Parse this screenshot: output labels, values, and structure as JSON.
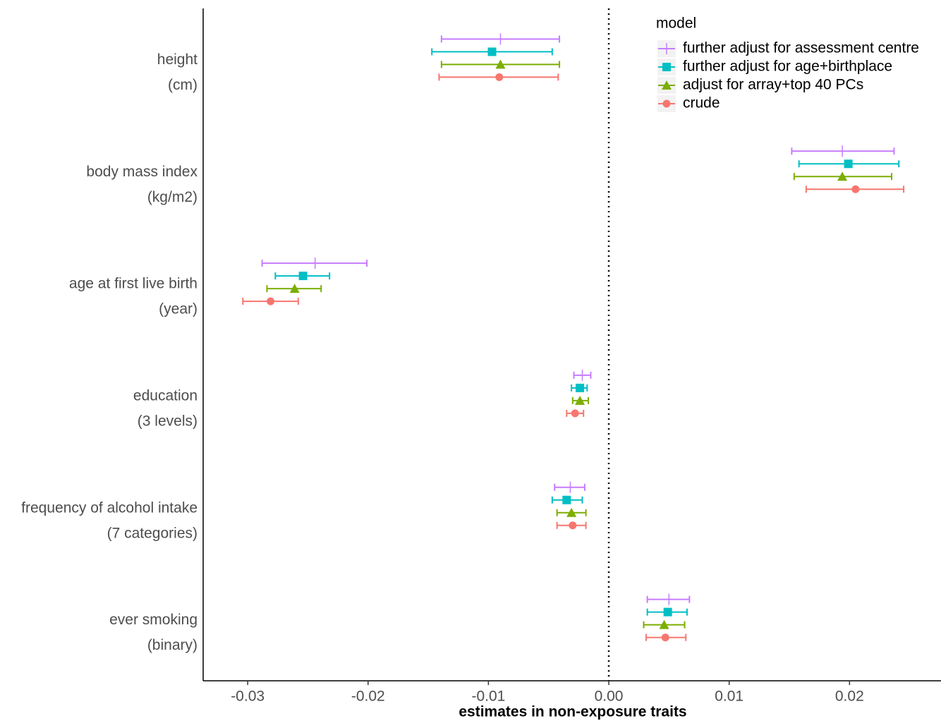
{
  "chart_data": {
    "type": "forest",
    "x_label": "estimates in non-exposure traits",
    "categories": [
      [
        "height",
        "(cm)"
      ],
      [
        "body mass index",
        "(kg/m2)"
      ],
      [
        "age at first live birth",
        "(year)"
      ],
      [
        "education",
        "(3 levels)"
      ],
      [
        "frequency of alcohol intake",
        "(7 categories)"
      ],
      [
        "ever smoking",
        "(binary)"
      ]
    ],
    "legend_title": "model",
    "legend_position": "top-right",
    "series": [
      {
        "name": "further adjust for assessment centre",
        "color": "#C77CFF",
        "shape": "plus",
        "values": [
          -0.009,
          0.0194,
          -0.0244,
          -0.0022,
          -0.0032,
          0.005
        ],
        "lower": [
          -0.0139,
          0.0152,
          -0.0288,
          -0.0029,
          -0.0045,
          0.0032
        ],
        "upper": [
          -0.0041,
          0.0237,
          -0.0201,
          -0.0015,
          -0.002,
          0.0067
        ]
      },
      {
        "name": "further adjust for age+birthplace",
        "color": "#00BFC4",
        "shape": "square",
        "values": [
          -0.0097,
          0.0199,
          -0.0254,
          -0.0024,
          -0.0035,
          0.0049
        ],
        "lower": [
          -0.0147,
          0.0158,
          -0.0277,
          -0.0031,
          -0.0047,
          0.0032
        ],
        "upper": [
          -0.0047,
          0.0241,
          -0.0232,
          -0.0018,
          -0.0022,
          0.0065
        ]
      },
      {
        "name": "adjust for array+top 40 PCs",
        "color": "#7CAE00",
        "shape": "triangle",
        "values": [
          -0.009,
          0.0194,
          -0.0261,
          -0.0024,
          -0.0031,
          0.0046
        ],
        "lower": [
          -0.0139,
          0.0154,
          -0.0284,
          -0.003,
          -0.0043,
          0.0029
        ],
        "upper": [
          -0.0041,
          0.0235,
          -0.0239,
          -0.0017,
          -0.0019,
          0.0063
        ]
      },
      {
        "name": "crude",
        "color": "#F8766D",
        "shape": "circle",
        "values": [
          -0.0091,
          0.0205,
          -0.0281,
          -0.0028,
          -0.003,
          0.0047
        ],
        "lower": [
          -0.0141,
          0.0164,
          -0.0304,
          -0.0035,
          -0.0043,
          0.0031
        ],
        "upper": [
          -0.0042,
          0.0245,
          -0.0258,
          -0.0021,
          -0.0019,
          0.0064
        ]
      }
    ],
    "xlim": [
      -0.0337,
      0.0276
    ],
    "xticks": [
      -0.03,
      -0.02,
      -0.01,
      {
        "value": 0,
        "label": "0.00"
      },
      0.01,
      0.02
    ],
    "reference_line": 0
  }
}
